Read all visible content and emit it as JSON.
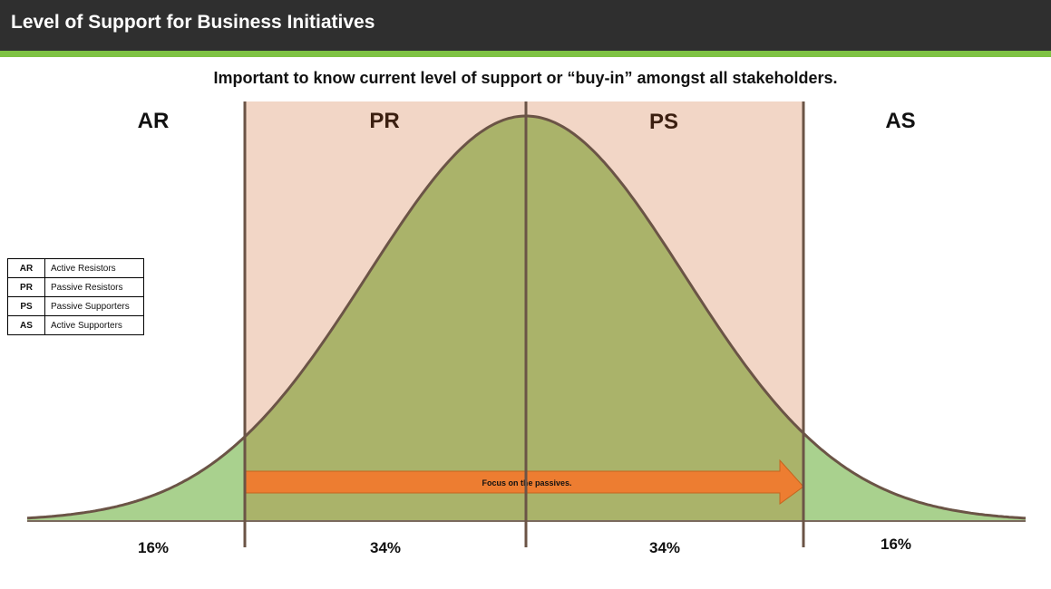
{
  "header": {
    "title": "Level of Support for Business Initiatives"
  },
  "subtitle": "Important to know current level of support or “buy-in” amongst all stakeholders.",
  "segments": [
    {
      "abbr": "AR",
      "label": "Active Resistors",
      "percent": "16%"
    },
    {
      "abbr": "PR",
      "label": "Passive Resistors",
      "percent": "34%"
    },
    {
      "abbr": "PS",
      "label": "Passive Supporters",
      "percent": "34%"
    },
    {
      "abbr": "AS",
      "label": "Active Supporters",
      "percent": "16%"
    }
  ],
  "arrow": {
    "label": "Focus on the passives."
  },
  "colors": {
    "header_bg": "#2f2f2f",
    "accent": "#7ec243",
    "middle_band": "#f2d6c6",
    "curve_center_fill": "#aab36a",
    "curve_tail_fill": "#a9d18e",
    "curve_stroke": "#6b5446",
    "arrow_fill": "#ed7d31",
    "middle_label": "#3b1f10"
  }
}
